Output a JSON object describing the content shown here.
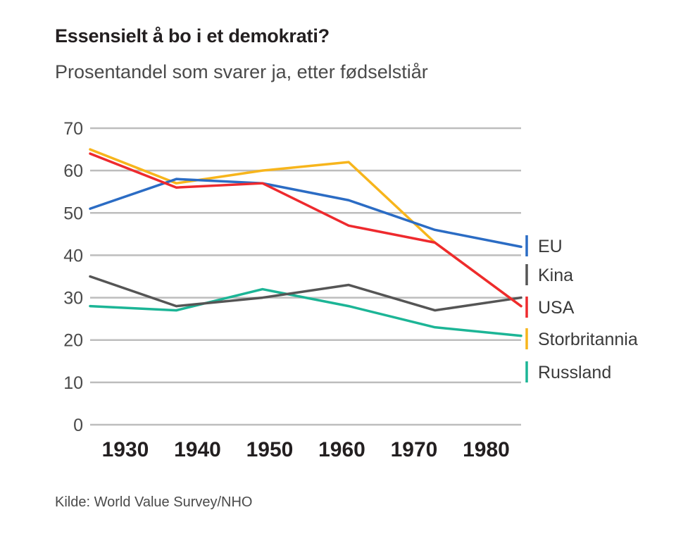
{
  "chart_data": {
    "type": "line",
    "title": "Essensielt å bo i et demokrati?",
    "subtitle": "Prosentandel som svarer ja, etter fødselstiår",
    "xlabel": "",
    "ylabel": "",
    "source": "Kilde: World Value Survey/NHO",
    "ylim": [
      0,
      70
    ],
    "yticks": [
      0,
      10,
      20,
      30,
      40,
      50,
      60,
      70
    ],
    "xticks": [
      "1930",
      "1940",
      "1950",
      "1960",
      "1970",
      "1980"
    ],
    "x": [
      1926,
      1936,
      1946,
      1956,
      1966,
      1976
    ],
    "grid": true,
    "legend_position": "right",
    "series": [
      {
        "name": "EU",
        "color": "#2b6cc4",
        "values": [
          51,
          58,
          57,
          53,
          46,
          42
        ]
      },
      {
        "name": "Kina",
        "color": "#555555",
        "values": [
          35,
          28,
          30,
          33,
          27,
          30
        ]
      },
      {
        "name": "USA",
        "color": "#ee2a2e",
        "values": [
          64,
          56,
          57,
          47,
          43,
          28
        ]
      },
      {
        "name": "Storbritannia",
        "color": "#f7b51c",
        "values": [
          65,
          57,
          60,
          62,
          43,
          28
        ]
      },
      {
        "name": "Russland",
        "color": "#1cb596",
        "values": [
          28,
          27,
          32,
          28,
          23,
          21
        ]
      }
    ]
  }
}
